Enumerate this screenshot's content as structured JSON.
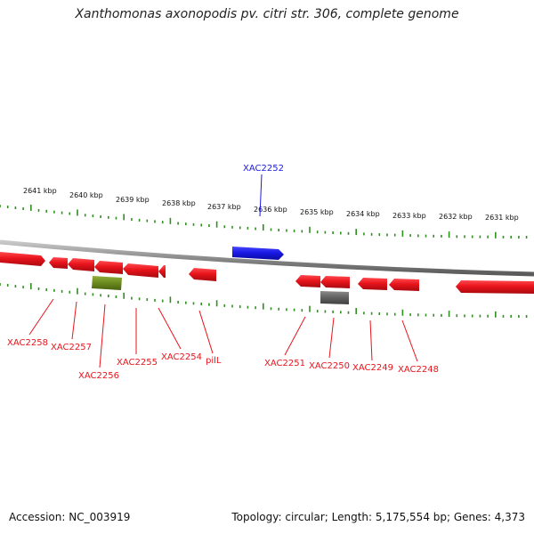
{
  "title": "Xanthomonas axonopodis pv. citri str. 306, complete genome",
  "footer": {
    "accession": "Accession: NC_003919",
    "summary": "Topology: circular; Length: 5,175,554 bp; Genes: 4,373"
  },
  "colors": {
    "gene_red": "#e8141b",
    "gene_blue": "#1a1ae6",
    "gene_olive": "#6b8a1e",
    "gene_gray": "#606060",
    "tick_green": "#2f8f1f",
    "backbone": "#8a8a8a"
  },
  "scale_labels": [
    "2641 kbp",
    "2640 kbp",
    "2639 kbp",
    "2638 kbp",
    "2637 kbp",
    "2636 kbp",
    "2635 kbp",
    "2634 kbp",
    "2633 kbp",
    "2632 kbp",
    "2631 kbp"
  ],
  "genes": [
    {
      "label": "XAC2258",
      "color": "red"
    },
    {
      "label": "XAC2257",
      "color": "red"
    },
    {
      "label": "XAC2256",
      "color": "olive"
    },
    {
      "label": "XAC2255",
      "color": "red"
    },
    {
      "label": "XAC2254",
      "color": "red"
    },
    {
      "label": "pilL",
      "color": "red"
    },
    {
      "label": "XAC2252",
      "color": "blue"
    },
    {
      "label": "XAC2251",
      "color": "red"
    },
    {
      "label": "XAC2250",
      "color": "gray"
    },
    {
      "label": "XAC2249",
      "color": "red"
    },
    {
      "label": "XAC2248",
      "color": "red"
    }
  ]
}
